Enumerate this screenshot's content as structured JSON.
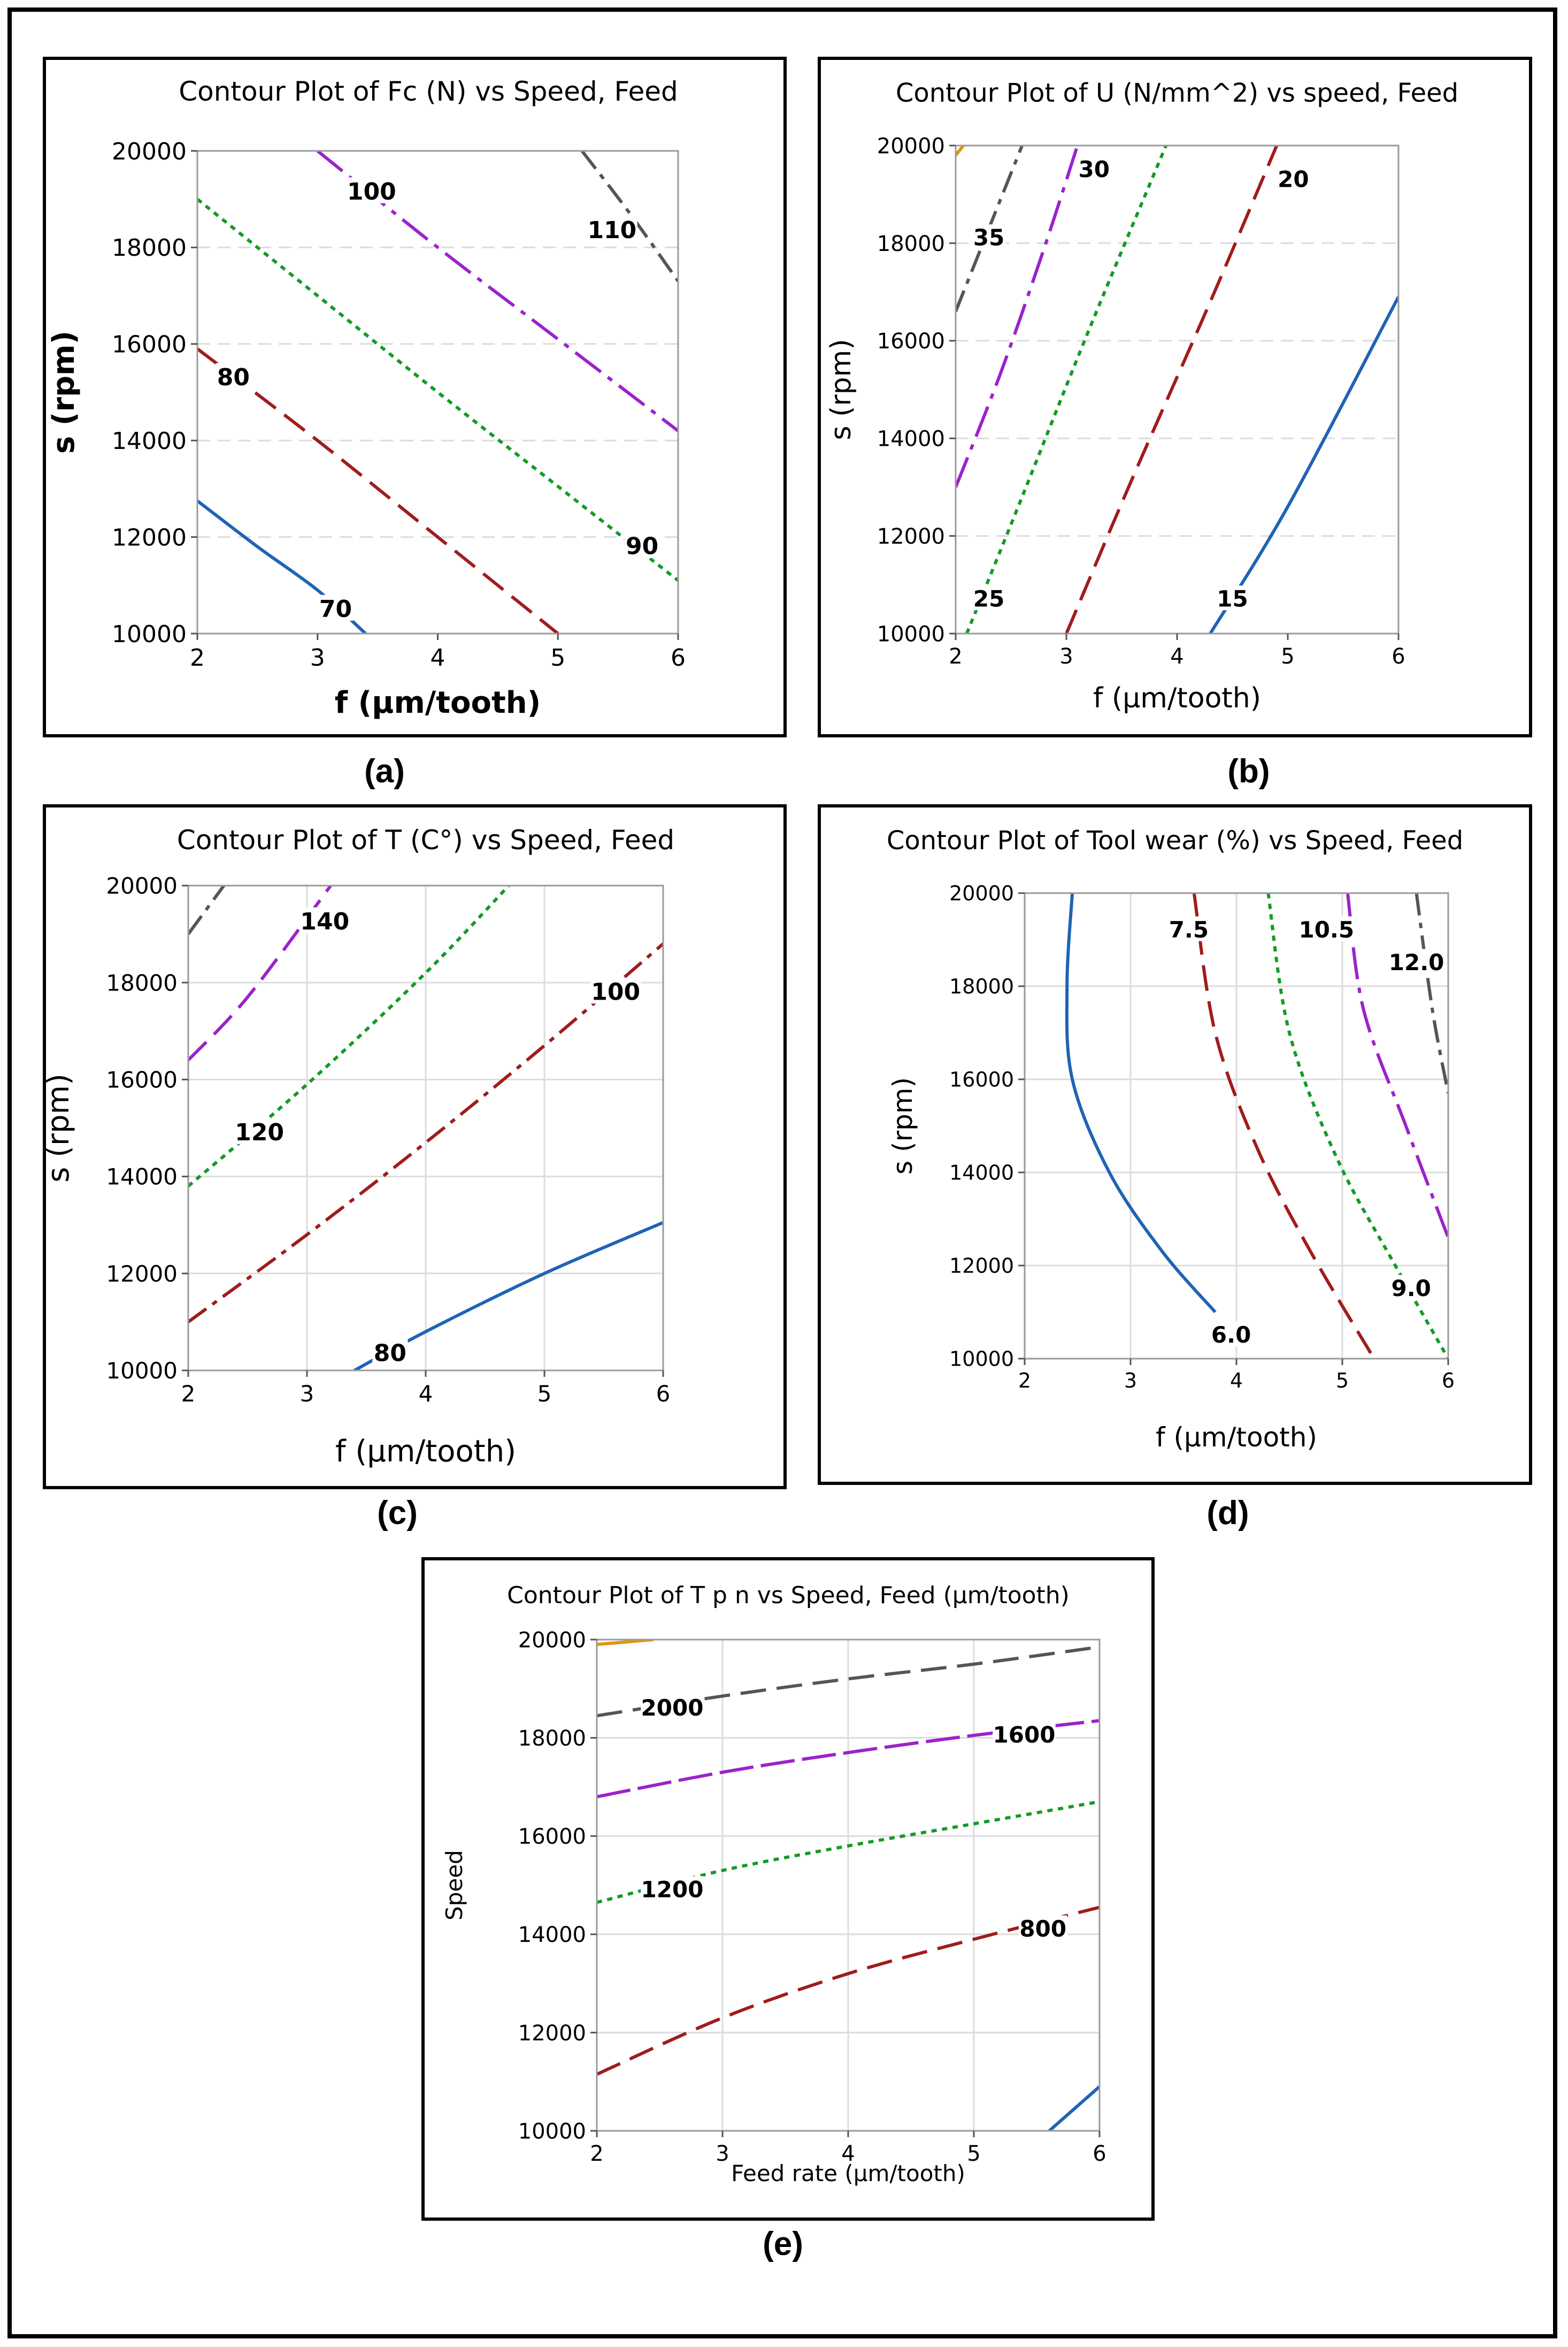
{
  "colors": {
    "blue": "#1f63b5",
    "red": "#a01c1c",
    "green": "#159a26",
    "purple": "#9b22cc",
    "gray": "#555555",
    "orange": "#e0960f",
    "grid": "#dcdcdc"
  },
  "chart_data": [
    {
      "id": "a",
      "type": "contour",
      "caption": "(a)",
      "title": "Contour Plot of Fc (N) vs Speed, Feed",
      "xlabel": "f (μm/tooth)",
      "ylabel": "s (rpm)",
      "xlim": [
        2,
        6
      ],
      "ylim": [
        10000,
        20000
      ],
      "xticks": [
        2,
        3,
        4,
        5,
        6
      ],
      "yticks": [
        10000,
        12000,
        14000,
        16000,
        18000,
        20000
      ],
      "grid_style": "dashed-horizontal",
      "contours": [
        {
          "level": "70",
          "color": "blue",
          "dash": "solid",
          "points": [
            [
              2,
              12750
            ],
            [
              2.5,
              11800
            ],
            [
              3.0,
              10900
            ],
            [
              3.4,
              10000
            ]
          ],
          "label_at": [
            3.15,
            10500
          ]
        },
        {
          "level": "80",
          "color": "red",
          "dash": "long",
          "points": [
            [
              2,
              15900
            ],
            [
              3,
              14000
            ],
            [
              4,
              12000
            ],
            [
              5,
              10000
            ]
          ],
          "label_at": [
            2.3,
            15300
          ]
        },
        {
          "level": "90",
          "color": "green",
          "dash": "dot",
          "points": [
            [
              2,
              19000
            ],
            [
              3,
              17000
            ],
            [
              4,
              15000
            ],
            [
              5,
              13050
            ],
            [
              6,
              11100
            ]
          ],
          "label_at": [
            5.7,
            11800
          ]
        },
        {
          "level": "100",
          "color": "purple",
          "dash": "longdot",
          "points": [
            [
              3.0,
              20000
            ],
            [
              4,
              18000
            ],
            [
              5,
              16100
            ],
            [
              6,
              14200
            ]
          ],
          "label_at": [
            3.45,
            19150
          ]
        },
        {
          "level": "110",
          "color": "gray",
          "dash": "dashdot",
          "points": [
            [
              5.2,
              20000
            ],
            [
              5.6,
              18700
            ],
            [
              6,
              17300
            ]
          ],
          "label_at": [
            5.45,
            18350
          ]
        }
      ]
    },
    {
      "id": "b",
      "type": "contour",
      "caption": "(b)",
      "title": "Contour Plot of U (N/mm^2) vs speed, Feed",
      "xlabel": "f (μm/tooth)",
      "ylabel": "s (rpm)",
      "xlim": [
        2,
        6
      ],
      "ylim": [
        10000,
        20000
      ],
      "xticks": [
        2,
        3,
        4,
        5,
        6
      ],
      "yticks": [
        10000,
        12000,
        14000,
        16000,
        18000,
        20000
      ],
      "grid_style": "dashed-horizontal",
      "contours": [
        {
          "level": "15",
          "color": "blue",
          "dash": "solid",
          "points": [
            [
              4.3,
              10000
            ],
            [
              5.0,
              12600
            ],
            [
              6.0,
              16900
            ]
          ],
          "label_at": [
            4.5,
            10700
          ]
        },
        {
          "level": "20",
          "color": "red",
          "dash": "long",
          "points": [
            [
              3.0,
              10000
            ],
            [
              3.6,
              13200
            ],
            [
              4.3,
              16800
            ],
            [
              4.9,
              20000
            ]
          ],
          "label_at": [
            5.05,
            19300
          ]
        },
        {
          "level": "25",
          "color": "green",
          "dash": "dot",
          "points": [
            [
              2.1,
              10000
            ],
            [
              2.6,
              12800
            ],
            [
              3.2,
              16200
            ],
            [
              3.9,
              20000
            ]
          ],
          "label_at": [
            2.3,
            10700
          ]
        },
        {
          "level": "30",
          "color": "purple",
          "dash": "longdot",
          "points": [
            [
              2.0,
              13000
            ],
            [
              2.4,
              15300
            ],
            [
              2.8,
              17900
            ],
            [
              3.1,
              20000
            ]
          ],
          "label_at": [
            3.25,
            19500
          ]
        },
        {
          "level": "35",
          "color": "gray",
          "dash": "dashdot",
          "points": [
            [
              2.0,
              16600
            ],
            [
              2.3,
              18300
            ],
            [
              2.6,
              20000
            ]
          ],
          "label_at": [
            2.3,
            18100
          ]
        },
        {
          "level": "",
          "color": "orange",
          "dash": "solid",
          "points": [
            [
              2.0,
              19800
            ],
            [
              2.07,
              20000
            ]
          ]
        }
      ]
    },
    {
      "id": "c",
      "type": "contour",
      "caption": "(c)",
      "title": "Contour Plot of T (C°) vs Speed, Feed",
      "xlabel": "f (μm/tooth)",
      "ylabel": "s (rpm)",
      "xlim": [
        2,
        6
      ],
      "ylim": [
        10000,
        20000
      ],
      "xticks": [
        2,
        3,
        4,
        5,
        6
      ],
      "yticks": [
        10000,
        12000,
        14000,
        16000,
        18000,
        20000
      ],
      "grid_style": "solid-both",
      "contours": [
        {
          "level": "80",
          "color": "blue",
          "dash": "solid",
          "points": [
            [
              3.4,
              10000
            ],
            [
              4,
              10800
            ],
            [
              5,
              12000
            ],
            [
              6,
              13050
            ]
          ],
          "label_at": [
            3.7,
            10350
          ]
        },
        {
          "level": "100",
          "color": "red",
          "dash": "dashdot",
          "points": [
            [
              2,
              11000
            ],
            [
              3,
              12800
            ],
            [
              4,
              14700
            ],
            [
              5,
              16700
            ],
            [
              6,
              18800
            ]
          ],
          "label_at": [
            5.6,
            17800
          ]
        },
        {
          "level": "120",
          "color": "green",
          "dash": "dot",
          "points": [
            [
              2,
              13800
            ],
            [
              3,
              15900
            ],
            [
              4,
              18200
            ],
            [
              4.7,
              20000
            ]
          ],
          "label_at": [
            2.6,
            14900
          ]
        },
        {
          "level": "140",
          "color": "purple",
          "dash": "long",
          "points": [
            [
              2,
              16400
            ],
            [
              2.5,
              17700
            ],
            [
              3.2,
              20000
            ]
          ],
          "label_at": [
            3.15,
            19250
          ]
        },
        {
          "level": "",
          "color": "gray",
          "dash": "dashdot",
          "points": [
            [
              2,
              19000
            ],
            [
              2.3,
              20000
            ]
          ]
        }
      ]
    },
    {
      "id": "d",
      "type": "contour",
      "caption": "(d)",
      "title": "Contour Plot of Tool wear (%) vs Speed, Feed",
      "xlabel": "f (μm/tooth)",
      "ylabel": "s (rpm)",
      "xlim": [
        2,
        6
      ],
      "ylim": [
        10000,
        20000
      ],
      "xticks": [
        2,
        3,
        4,
        5,
        6
      ],
      "yticks": [
        10000,
        12000,
        14000,
        16000,
        18000,
        20000
      ],
      "grid_style": "solid-both",
      "contours": [
        {
          "level": "6.0",
          "color": "blue",
          "dash": "solid",
          "points": [
            [
              2.45,
              20000
            ],
            [
              2.4,
              18000
            ],
            [
              2.45,
              16000
            ],
            [
              2.8,
              14000
            ],
            [
              3.3,
              12300
            ],
            [
              3.8,
              11000
            ]
          ],
          "label_at": [
            3.95,
            10500
          ]
        },
        {
          "level": "7.5",
          "color": "red",
          "dash": "long",
          "points": [
            [
              3.6,
              20000
            ],
            [
              3.8,
              17000
            ],
            [
              4.2,
              14500
            ],
            [
              4.7,
              12300
            ],
            [
              5.3,
              10000
            ]
          ],
          "label_at": [
            3.55,
            19200
          ]
        },
        {
          "level": "9.0",
          "color": "green",
          "dash": "dot",
          "points": [
            [
              4.3,
              20000
            ],
            [
              4.5,
              17000
            ],
            [
              4.95,
              14300
            ],
            [
              5.5,
              12000
            ],
            [
              6.0,
              10000
            ]
          ],
          "label_at": [
            5.65,
            11500
          ]
        },
        {
          "level": "10.5",
          "color": "purple",
          "dash": "longdot",
          "points": [
            [
              5.05,
              20000
            ],
            [
              5.2,
              17500
            ],
            [
              5.6,
              15000
            ],
            [
              6.0,
              12600
            ]
          ],
          "label_at": [
            4.85,
            19200
          ]
        },
        {
          "level": "12.0",
          "color": "gray",
          "dash": "dashdot",
          "points": [
            [
              5.7,
              20000
            ],
            [
              5.85,
              17500
            ],
            [
              6.0,
              15700
            ]
          ],
          "label_at": [
            5.7,
            18500
          ]
        }
      ]
    },
    {
      "id": "e",
      "type": "contour",
      "caption": "(e)",
      "title": "Contour Plot of T p n  vs Speed, Feed (μm/tooth)",
      "xlabel": "Feed rate (μm/tooth)",
      "ylabel": "Speed",
      "xlim": [
        2,
        6
      ],
      "ylim": [
        10000,
        20000
      ],
      "xticks": [
        2,
        3,
        4,
        5,
        6
      ],
      "yticks": [
        10000,
        12000,
        14000,
        16000,
        18000,
        20000
      ],
      "grid_style": "solid-both",
      "contours": [
        {
          "level": "",
          "color": "blue",
          "dash": "solid",
          "points": [
            [
              5.6,
              10000
            ],
            [
              5.8,
              10450
            ],
            [
              6.0,
              10900
            ]
          ]
        },
        {
          "level": "800",
          "color": "red",
          "dash": "long",
          "points": [
            [
              2,
              11150
            ],
            [
              3,
              12300
            ],
            [
              4,
              13200
            ],
            [
              5,
              13900
            ],
            [
              6,
              14550
            ]
          ],
          "label_at": [
            5.55,
            14100
          ]
        },
        {
          "level": "1200",
          "color": "green",
          "dash": "dot",
          "points": [
            [
              2,
              14650
            ],
            [
              3,
              15300
            ],
            [
              4,
              15800
            ],
            [
              5,
              16250
            ],
            [
              6,
              16700
            ]
          ],
          "label_at": [
            2.6,
            14900
          ]
        },
        {
          "level": "1600",
          "color": "purple",
          "dash": "longdash",
          "points": [
            [
              2,
              16800
            ],
            [
              3,
              17300
            ],
            [
              4,
              17700
            ],
            [
              5,
              18050
            ],
            [
              6,
              18350
            ]
          ],
          "label_at": [
            5.4,
            18050
          ]
        },
        {
          "level": "2000",
          "color": "gray",
          "dash": "long",
          "points": [
            [
              2,
              18450
            ],
            [
              3,
              18850
            ],
            [
              4,
              19200
            ],
            [
              5,
              19500
            ],
            [
              6,
              19850
            ]
          ],
          "label_at": [
            2.6,
            18600
          ]
        },
        {
          "level": "",
          "color": "orange",
          "dash": "solid",
          "points": [
            [
              2,
              19900
            ],
            [
              2.45,
              20000
            ]
          ]
        }
      ]
    }
  ]
}
